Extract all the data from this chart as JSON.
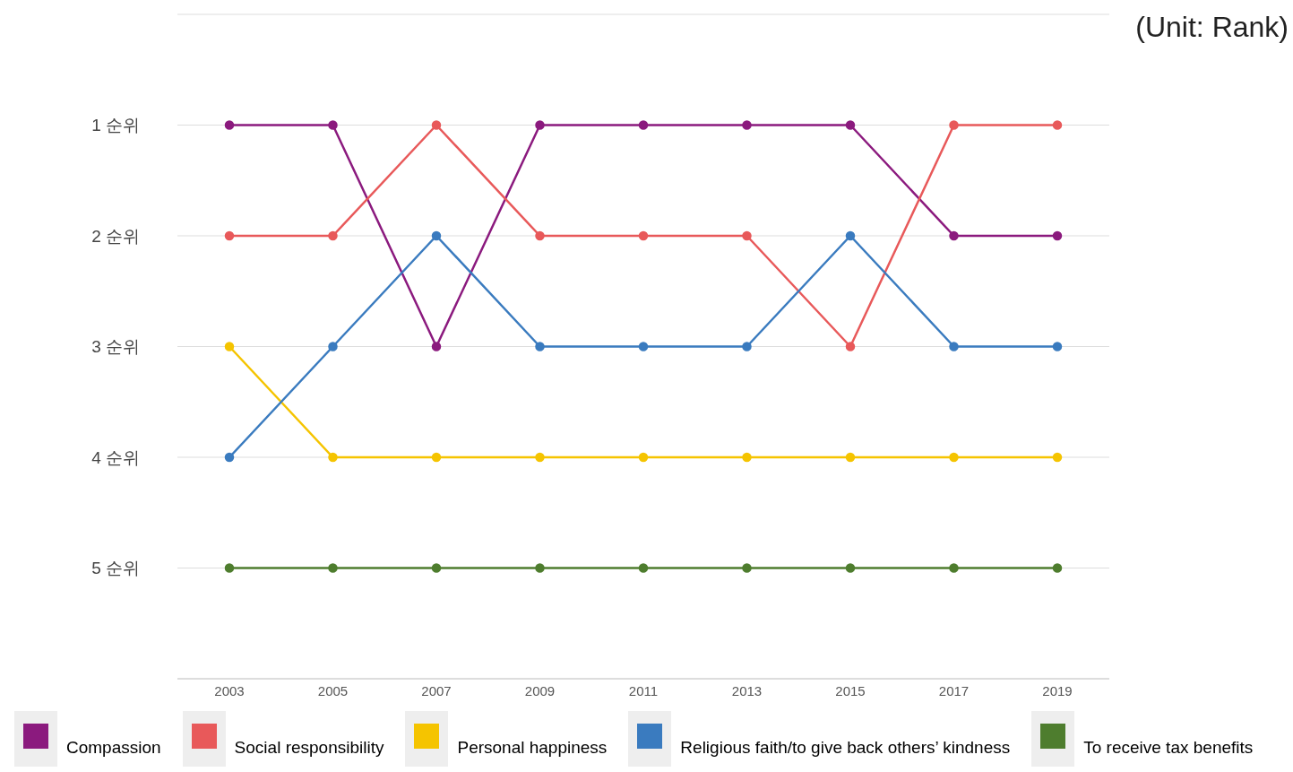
{
  "chart_data": {
    "type": "line",
    "annotations": [
      "(Unit: Rank)"
    ],
    "categories": [
      "2003",
      "2005",
      "2007",
      "2009",
      "2011",
      "2013",
      "2015",
      "2017",
      "2019"
    ],
    "series": [
      {
        "name": "Compassion",
        "color": "#8b1a7e",
        "values": [
          1,
          1,
          3,
          1,
          1,
          1,
          1,
          2,
          2
        ]
      },
      {
        "name": "Social responsibility",
        "color": "#e8595a",
        "values": [
          2,
          2,
          1,
          2,
          2,
          2,
          3,
          1,
          1
        ]
      },
      {
        "name": "Personal happiness",
        "color": "#f5c400",
        "values": [
          3,
          4,
          4,
          4,
          4,
          4,
          4,
          4,
          4
        ]
      },
      {
        "name": "Religious faith/to give back others’ kindness",
        "color": "#3a7bbf",
        "values": [
          4,
          3,
          2,
          3,
          3,
          3,
          2,
          3,
          3
        ]
      },
      {
        "name": "To receive tax benefits",
        "color": "#4e7d2e",
        "values": [
          5,
          5,
          5,
          5,
          5,
          5,
          5,
          5,
          5
        ]
      }
    ],
    "ylim": [
      6,
      0
    ],
    "yticks": [
      {
        "value": 0,
        "label": null
      },
      {
        "value": 1,
        "label": "1 순위"
      },
      {
        "value": 2,
        "label": "2 순위"
      },
      {
        "value": 3,
        "label": "3 순위"
      },
      {
        "value": 4,
        "label": "4 순위"
      },
      {
        "value": 5,
        "label": "5 순위"
      },
      {
        "value": 6,
        "label": null
      }
    ],
    "grid": "y",
    "legend": "bottom",
    "marker": "circle",
    "line_style": "solid"
  }
}
